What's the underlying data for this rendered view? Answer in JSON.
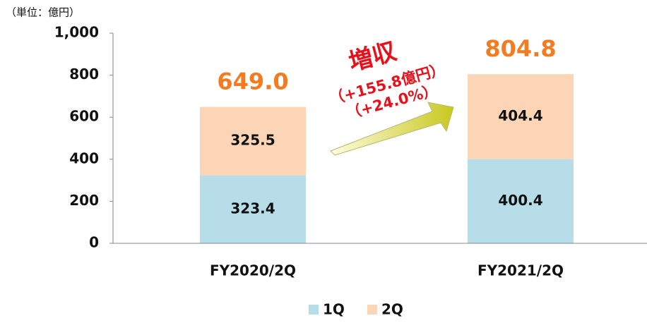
{
  "chart_data": {
    "type": "stacked_bar",
    "unit_label": "（単位：億円）",
    "categories": [
      "FY2020/2Q",
      "FY2021/2Q"
    ],
    "series": [
      {
        "name": "1Q",
        "color": "#b7dde8",
        "values": [
          323.4,
          400.4
        ]
      },
      {
        "name": "2Q",
        "color": "#fbd5b5",
        "values": [
          325.5,
          404.4
        ]
      }
    ],
    "totals": {
      "values": [
        649.0,
        804.8
      ],
      "value_labels": [
        "649.0",
        "804.8"
      ],
      "color": "#f47b20"
    },
    "annotations": [
      "増収",
      "（+155.8億円）",
      "（+24.0%）"
    ],
    "ylim": [
      0,
      1000
    ],
    "yticks": [
      0,
      200,
      400,
      600,
      800,
      {
        "value": 1000,
        "label": "1,000"
      }
    ],
    "grid": false,
    "legend": "bottom"
  }
}
